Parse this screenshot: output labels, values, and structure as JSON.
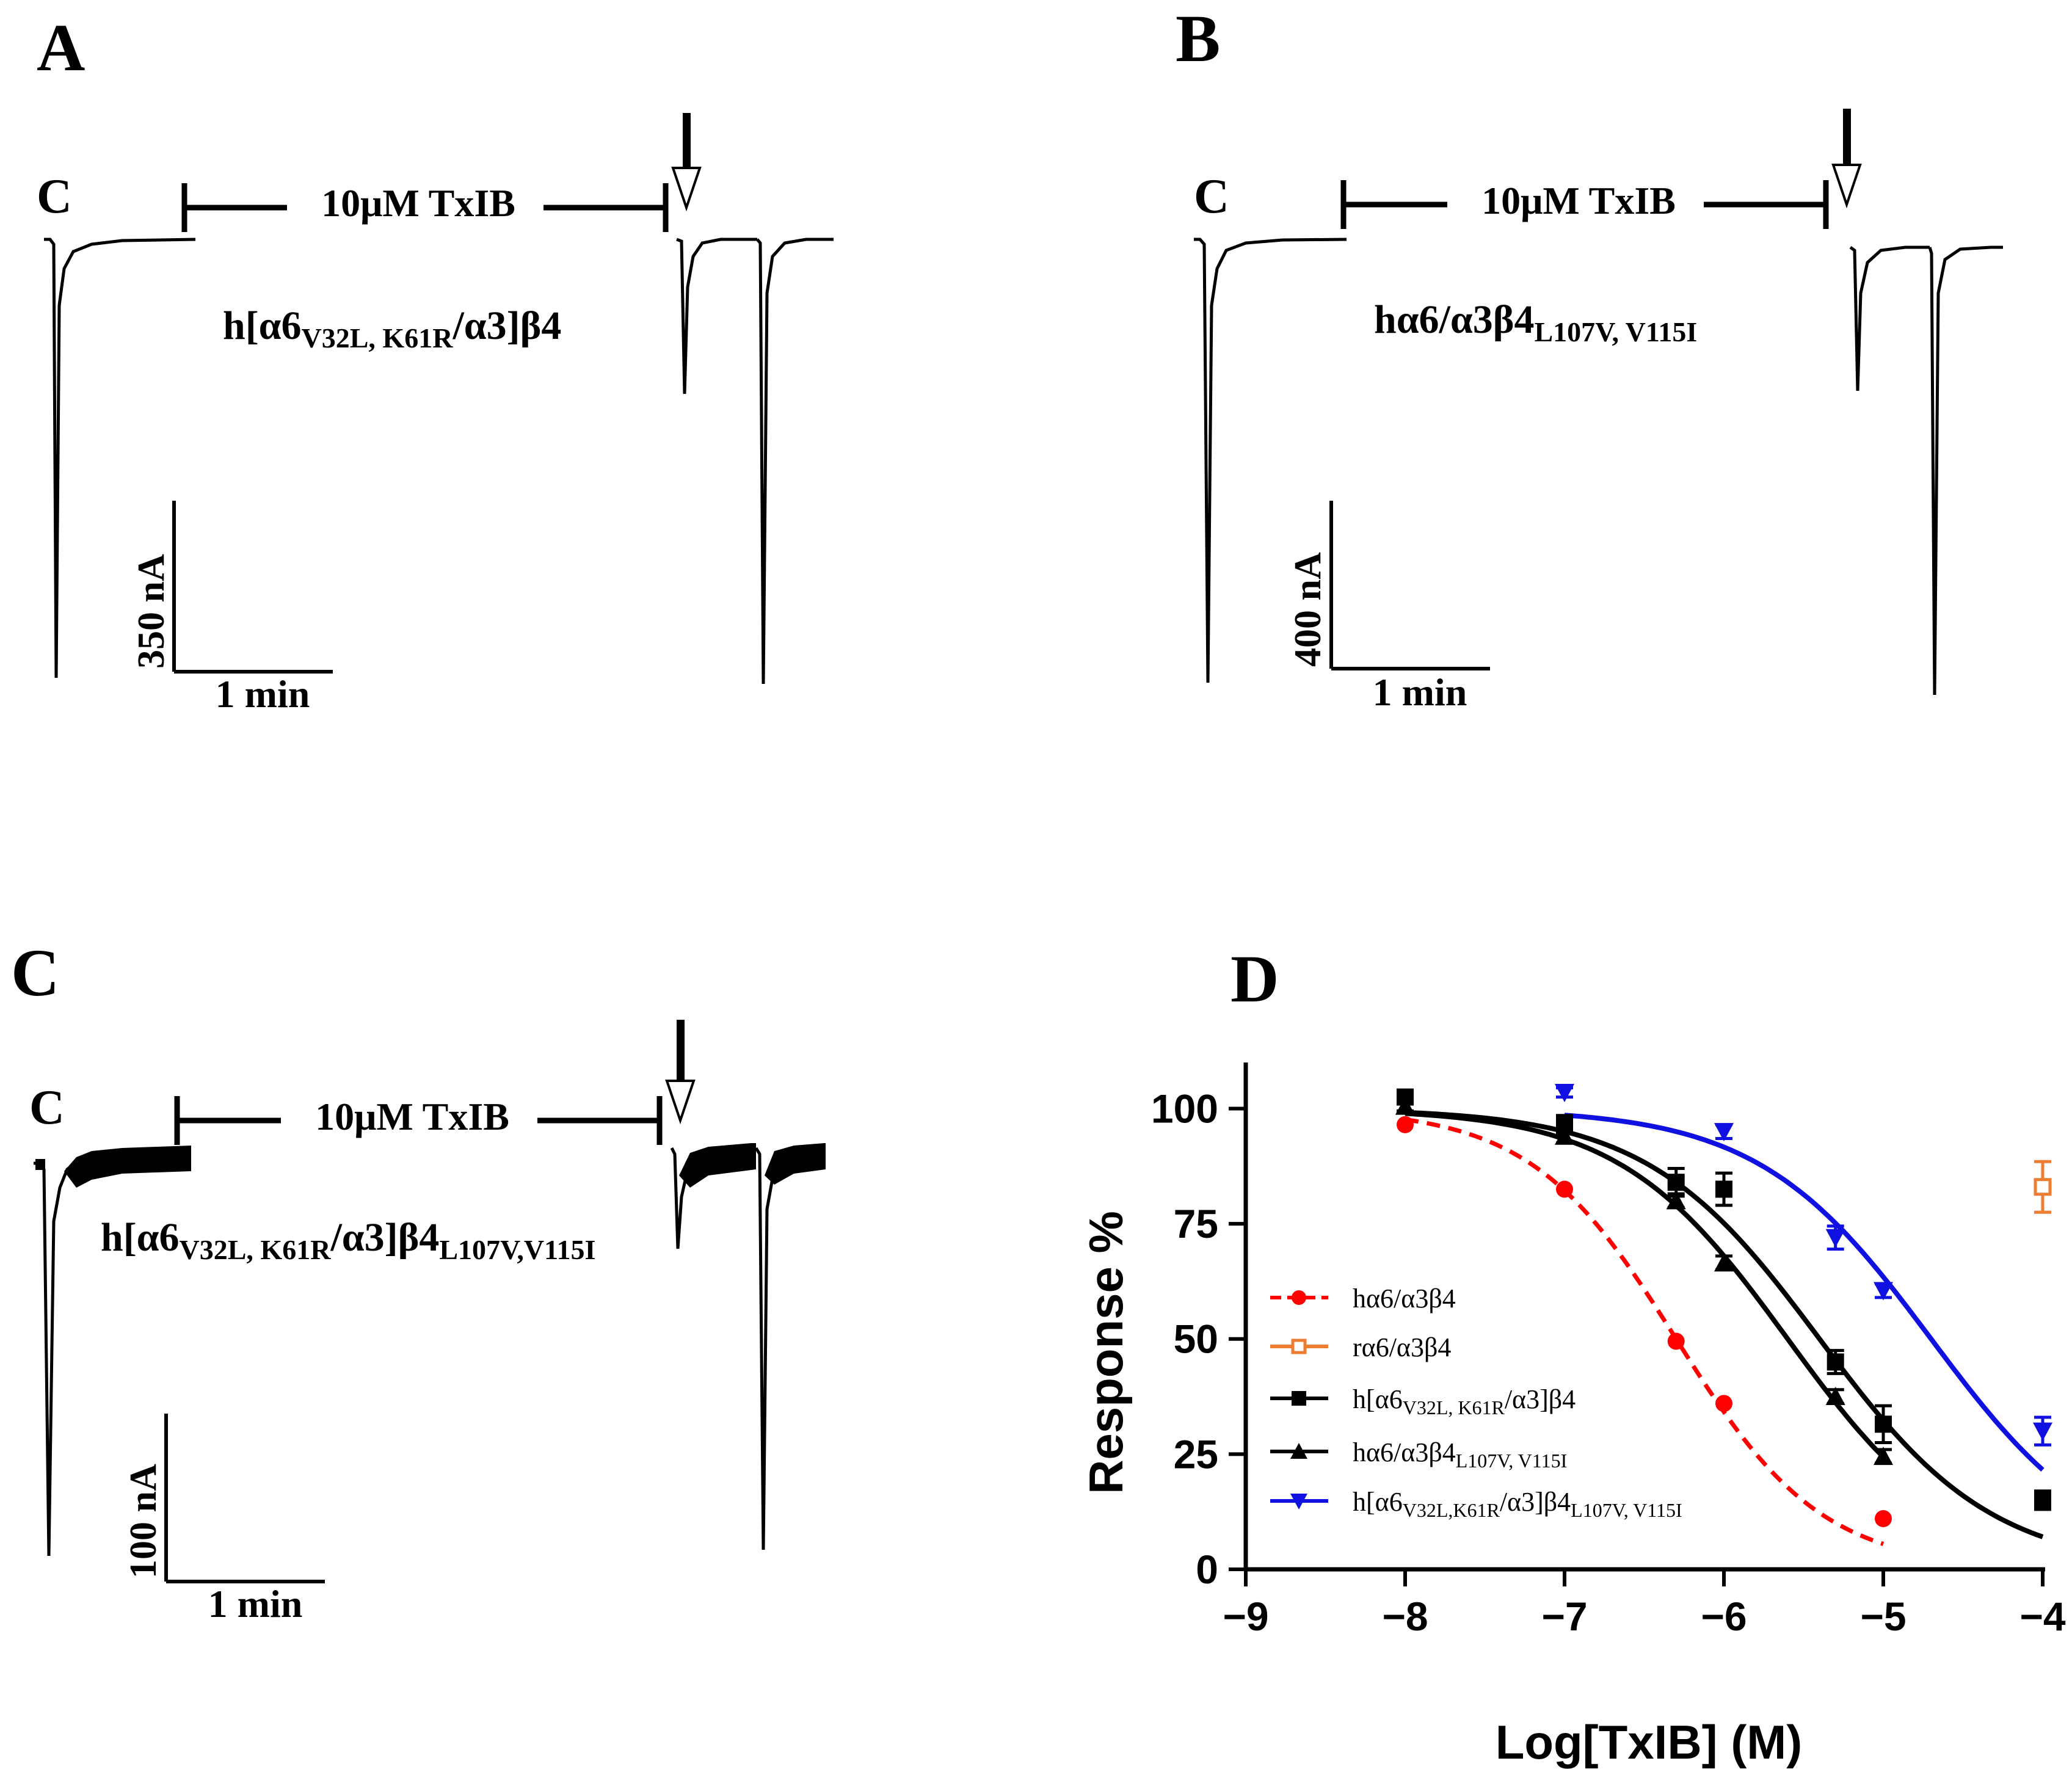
{
  "panels": {
    "A": {
      "letter": "A",
      "control_label": "C",
      "bar_label": "10μM TxIB",
      "construct": {
        "pre": "h[α6",
        "sub": "V32L, K61R",
        "post": "/α3]β4"
      },
      "scale_current": "350 nA",
      "scale_time": "1 min"
    },
    "B": {
      "letter": "B",
      "control_label": "C",
      "bar_label": "10μM TxIB",
      "construct": {
        "pre": "hα6/α3β4",
        "sub": "L107V, V115I",
        "post": ""
      },
      "scale_current": "400 nA",
      "scale_time": "1 min"
    },
    "C": {
      "letter": "C",
      "control_label": "C",
      "bar_label": "10μM TxIB",
      "construct": {
        "pre": "h[α6",
        "sub1": "V32L, K61R",
        "mid": "/α3]β4",
        "sub2": "L107V,V115I"
      },
      "scale_current": "100 nA",
      "scale_time": "1 min"
    }
  },
  "chart_data": {
    "letter": "D",
    "type": "line",
    "xlabel": "Log[TxIB] (M)",
    "ylabel": "Response %",
    "xlim": [
      -9,
      -4
    ],
    "ylim": [
      0,
      110
    ],
    "xticks": [
      -9,
      -8,
      -7,
      -6,
      -5,
      -4
    ],
    "xtick_labels": [
      "−9",
      "−8",
      "−7",
      "−6",
      "−5",
      "−4"
    ],
    "yticks": [
      0,
      25,
      50,
      75,
      100
    ],
    "ytick_labels": [
      "0",
      "25",
      "50",
      "75",
      "100"
    ],
    "legend_position": "center-left",
    "series": [
      {
        "key": "s1",
        "legend": {
          "pre": "hα6/α3β4",
          "sub": "",
          "post": "",
          "sub2": ""
        },
        "color": "#ff0000",
        "marker": "circle",
        "dashed": true,
        "x": [
          -8,
          -7,
          -6.3,
          -6,
          -5
        ],
        "y": [
          96.5,
          82.5,
          49.5,
          36,
          11
        ],
        "err": [
          0,
          0,
          0,
          0,
          0
        ],
        "fit": {
          "ic50_log": -6.3,
          "hill": 0.95,
          "x_range": [
            -8,
            -5
          ]
        }
      },
      {
        "key": "s2",
        "legend": {
          "pre": "rα6/α3β4",
          "sub": "",
          "post": "",
          "sub2": ""
        },
        "color": "#ed7d31",
        "marker": "open-square",
        "dashed": false,
        "x": [
          -4
        ],
        "y": [
          83
        ],
        "err": [
          5.5
        ],
        "fit": null
      },
      {
        "key": "s3",
        "legend": {
          "pre": "h[α6",
          "sub": "V32L, K61R",
          "post": "/α3]β4",
          "sub2": ""
        },
        "color": "#000000",
        "marker": "square",
        "dashed": false,
        "x": [
          -8,
          -7,
          -6.3,
          -6,
          -5.3,
          -5,
          -4
        ],
        "y": [
          102.5,
          96.5,
          84,
          82.5,
          45,
          31.5,
          15
        ],
        "err": [
          1.5,
          2,
          3,
          3.5,
          2.5,
          4,
          2
        ],
        "fit": {
          "ic50_log": -5.4,
          "hill": 0.8,
          "x_range": [
            -8,
            -4
          ]
        }
      },
      {
        "key": "s4",
        "legend": {
          "pre": "hα6/α3β4",
          "sub": "L107V, V115I",
          "post": "",
          "sub2": ""
        },
        "color": "#000000",
        "marker": "triangle-up",
        "dashed": false,
        "x": [
          -8,
          -7,
          -6.3,
          -6,
          -5.3,
          -5
        ],
        "y": [
          100.5,
          94,
          80,
          66.5,
          37.5,
          24.5
        ],
        "err": [
          1,
          1.5,
          1.5,
          1.5,
          1.5,
          1.5
        ],
        "fit": {
          "ic50_log": -5.6,
          "hill": 0.82,
          "x_range": [
            -8,
            -5
          ]
        }
      },
      {
        "key": "s5",
        "legend": {
          "pre": "h[α6",
          "sub": "V32L,K61R",
          "post": "/α3]β4",
          "sub2": "L107V, V115I"
        },
        "color": "#1010e0",
        "marker": "triangle-down",
        "dashed": false,
        "x": [
          -7,
          -6,
          -5.3,
          -5,
          -4
        ],
        "y": [
          103.5,
          95,
          72,
          60.5,
          30
        ],
        "err": [
          1,
          1.5,
          2.5,
          1.5,
          3
        ],
        "fit": {
          "ic50_log": -4.7,
          "hill": 0.8,
          "x_range": [
            -7,
            -4
          ]
        }
      }
    ]
  }
}
